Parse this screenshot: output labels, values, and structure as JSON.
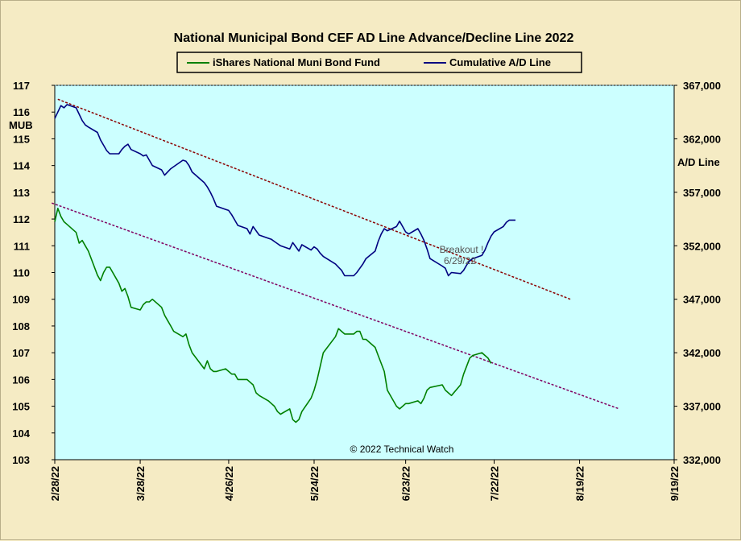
{
  "chart_data": {
    "type": "line",
    "title": "National Municipal Bond CEF AD Line Advance/Decline Line 2022",
    "legend": {
      "placement": "top-center",
      "entries": [
        "iShares National Muni Bond Fund",
        "Cumulative A/D Line"
      ]
    },
    "left_axis": {
      "label": "MUB",
      "range": [
        103,
        117
      ],
      "ticks": [
        "103",
        "104",
        "105",
        "106",
        "107",
        "108",
        "109",
        "110",
        "111",
        "112",
        "113",
        "114",
        "115",
        "116",
        "117"
      ]
    },
    "right_axis": {
      "label": "A/D Line",
      "range": [
        332000,
        367000
      ],
      "ticks": [
        "332,000",
        "337,000",
        "342,000",
        "347,000",
        "352,000",
        "357,000",
        "362,000",
        "367,000"
      ]
    },
    "x_axis": {
      "range": [
        "2022-02-28",
        "2022-09-19"
      ],
      "ticks": [
        "2/28/22",
        "3/28/22",
        "4/26/22",
        "5/24/22",
        "6/23/22",
        "7/22/22",
        "8/19/22",
        "9/19/22"
      ]
    },
    "grid": false,
    "colors": {
      "plot_bg": "#ccffff",
      "mub": "#008000",
      "ad": "#000080",
      "trend_ad": "#8b0000",
      "trend_mub": "#800060",
      "page_bg": "#f5ebc4"
    },
    "series": [
      {
        "name": "iShares National Muni Bond Fund",
        "axis": "left",
        "points": [
          [
            "2022-02-28",
            111.9
          ],
          [
            "2022-03-01",
            112.4
          ],
          [
            "2022-03-02",
            112.1
          ],
          [
            "2022-03-03",
            111.9
          ],
          [
            "2022-03-04",
            111.8
          ],
          [
            "2022-03-07",
            111.5
          ],
          [
            "2022-03-08",
            111.1
          ],
          [
            "2022-03-09",
            111.2
          ],
          [
            "2022-03-10",
            111.0
          ],
          [
            "2022-03-11",
            110.8
          ],
          [
            "2022-03-14",
            109.9
          ],
          [
            "2022-03-15",
            109.7
          ],
          [
            "2022-03-16",
            110.0
          ],
          [
            "2022-03-17",
            110.2
          ],
          [
            "2022-03-18",
            110.2
          ],
          [
            "2022-03-21",
            109.6
          ],
          [
            "2022-03-22",
            109.3
          ],
          [
            "2022-03-23",
            109.4
          ],
          [
            "2022-03-24",
            109.1
          ],
          [
            "2022-03-25",
            108.7
          ],
          [
            "2022-03-28",
            108.6
          ],
          [
            "2022-03-29",
            108.8
          ],
          [
            "2022-03-30",
            108.9
          ],
          [
            "2022-03-31",
            108.9
          ],
          [
            "2022-04-01",
            109.0
          ],
          [
            "2022-04-04",
            108.7
          ],
          [
            "2022-04-05",
            108.4
          ],
          [
            "2022-04-06",
            108.2
          ],
          [
            "2022-04-07",
            108.0
          ],
          [
            "2022-04-08",
            107.8
          ],
          [
            "2022-04-11",
            107.6
          ],
          [
            "2022-04-12",
            107.7
          ],
          [
            "2022-04-13",
            107.3
          ],
          [
            "2022-04-14",
            107.0
          ],
          [
            "2022-04-18",
            106.4
          ],
          [
            "2022-04-19",
            106.7
          ],
          [
            "2022-04-20",
            106.4
          ],
          [
            "2022-04-21",
            106.3
          ],
          [
            "2022-04-22",
            106.3
          ],
          [
            "2022-04-25",
            106.4
          ],
          [
            "2022-04-26",
            106.3
          ],
          [
            "2022-04-27",
            106.2
          ],
          [
            "2022-04-28",
            106.2
          ],
          [
            "2022-04-29",
            106.0
          ],
          [
            "2022-05-02",
            106.0
          ],
          [
            "2022-05-03",
            105.9
          ],
          [
            "2022-05-04",
            105.8
          ],
          [
            "2022-05-05",
            105.5
          ],
          [
            "2022-05-06",
            105.4
          ],
          [
            "2022-05-09",
            105.2
          ],
          [
            "2022-05-10",
            105.1
          ],
          [
            "2022-05-11",
            105.0
          ],
          [
            "2022-05-12",
            104.8
          ],
          [
            "2022-05-13",
            104.7
          ],
          [
            "2022-05-16",
            104.9
          ],
          [
            "2022-05-17",
            104.5
          ],
          [
            "2022-05-18",
            104.4
          ],
          [
            "2022-05-19",
            104.5
          ],
          [
            "2022-05-20",
            104.8
          ],
          [
            "2022-05-23",
            105.3
          ],
          [
            "2022-05-24",
            105.6
          ],
          [
            "2022-05-25",
            106.0
          ],
          [
            "2022-05-26",
            106.5
          ],
          [
            "2022-05-27",
            107.0
          ],
          [
            "2022-05-31",
            107.6
          ],
          [
            "2022-06-01",
            107.9
          ],
          [
            "2022-06-02",
            107.8
          ],
          [
            "2022-06-03",
            107.7
          ],
          [
            "2022-06-06",
            107.7
          ],
          [
            "2022-06-07",
            107.8
          ],
          [
            "2022-06-08",
            107.8
          ],
          [
            "2022-06-09",
            107.5
          ],
          [
            "2022-06-10",
            107.5
          ],
          [
            "2022-06-13",
            107.2
          ],
          [
            "2022-06-14",
            106.9
          ],
          [
            "2022-06-15",
            106.6
          ],
          [
            "2022-06-16",
            106.3
          ],
          [
            "2022-06-17",
            105.6
          ],
          [
            "2022-06-20",
            105.0
          ],
          [
            "2022-06-21",
            104.9
          ],
          [
            "2022-06-22",
            105.0
          ],
          [
            "2022-06-23",
            105.1
          ],
          [
            "2022-06-24",
            105.1
          ],
          [
            "2022-06-27",
            105.2
          ],
          [
            "2022-06-28",
            105.1
          ],
          [
            "2022-06-29",
            105.3
          ],
          [
            "2022-06-30",
            105.6
          ],
          [
            "2022-07-01",
            105.7
          ],
          [
            "2022-07-05",
            105.8
          ],
          [
            "2022-07-06",
            105.6
          ],
          [
            "2022-07-07",
            105.5
          ],
          [
            "2022-07-08",
            105.4
          ],
          [
            "2022-07-11",
            105.8
          ],
          [
            "2022-07-12",
            106.2
          ],
          [
            "2022-07-13",
            106.5
          ],
          [
            "2022-07-14",
            106.8
          ],
          [
            "2022-07-15",
            106.9
          ],
          [
            "2022-07-18",
            107.0
          ],
          [
            "2022-07-19",
            106.9
          ],
          [
            "2022-07-20",
            106.8
          ],
          [
            "2022-07-21",
            106.6
          ]
        ]
      },
      {
        "name": "Cumulative A/D Line",
        "axis": "right",
        "points": [
          [
            "2022-02-28",
            363900
          ],
          [
            "2022-03-01",
            364500
          ],
          [
            "2022-03-02",
            365100
          ],
          [
            "2022-03-03",
            364900
          ],
          [
            "2022-03-04",
            365200
          ],
          [
            "2022-03-07",
            364900
          ],
          [
            "2022-03-08",
            364300
          ],
          [
            "2022-03-09",
            363700
          ],
          [
            "2022-03-10",
            363300
          ],
          [
            "2022-03-11",
            363100
          ],
          [
            "2022-03-14",
            362600
          ],
          [
            "2022-03-15",
            361900
          ],
          [
            "2022-03-16",
            361400
          ],
          [
            "2022-03-17",
            360900
          ],
          [
            "2022-03-18",
            360600
          ],
          [
            "2022-03-21",
            360600
          ],
          [
            "2022-03-22",
            361000
          ],
          [
            "2022-03-23",
            361300
          ],
          [
            "2022-03-24",
            361500
          ],
          [
            "2022-03-25",
            361000
          ],
          [
            "2022-03-28",
            360600
          ],
          [
            "2022-03-29",
            360400
          ],
          [
            "2022-03-30",
            360500
          ],
          [
            "2022-03-31",
            360000
          ],
          [
            "2022-04-01",
            359500
          ],
          [
            "2022-04-04",
            359100
          ],
          [
            "2022-04-05",
            358600
          ],
          [
            "2022-04-06",
            358900
          ],
          [
            "2022-04-07",
            359200
          ],
          [
            "2022-04-08",
            359400
          ],
          [
            "2022-04-11",
            360000
          ],
          [
            "2022-04-12",
            359900
          ],
          [
            "2022-04-13",
            359500
          ],
          [
            "2022-04-14",
            358900
          ],
          [
            "2022-04-18",
            357900
          ],
          [
            "2022-04-19",
            357500
          ],
          [
            "2022-04-20",
            357000
          ],
          [
            "2022-04-21",
            356400
          ],
          [
            "2022-04-22",
            355700
          ],
          [
            "2022-04-25",
            355400
          ],
          [
            "2022-04-26",
            355300
          ],
          [
            "2022-04-27",
            354900
          ],
          [
            "2022-04-28",
            354400
          ],
          [
            "2022-04-29",
            353900
          ],
          [
            "2022-05-02",
            353600
          ],
          [
            "2022-05-03",
            353100
          ],
          [
            "2022-05-04",
            353800
          ],
          [
            "2022-05-05",
            353400
          ],
          [
            "2022-05-06",
            353000
          ],
          [
            "2022-05-09",
            352700
          ],
          [
            "2022-05-10",
            352600
          ],
          [
            "2022-05-11",
            352400
          ],
          [
            "2022-05-12",
            352200
          ],
          [
            "2022-05-13",
            352000
          ],
          [
            "2022-05-16",
            351700
          ],
          [
            "2022-05-17",
            352300
          ],
          [
            "2022-05-18",
            351900
          ],
          [
            "2022-05-19",
            351500
          ],
          [
            "2022-05-20",
            352100
          ],
          [
            "2022-05-23",
            351600
          ],
          [
            "2022-05-24",
            351900
          ],
          [
            "2022-05-25",
            351700
          ],
          [
            "2022-05-26",
            351300
          ],
          [
            "2022-05-27",
            351000
          ],
          [
            "2022-05-31",
            350300
          ],
          [
            "2022-06-01",
            350000
          ],
          [
            "2022-06-02",
            349700
          ],
          [
            "2022-06-03",
            349200
          ],
          [
            "2022-06-06",
            349200
          ],
          [
            "2022-06-07",
            349500
          ],
          [
            "2022-06-08",
            349900
          ],
          [
            "2022-06-09",
            350300
          ],
          [
            "2022-06-10",
            350800
          ],
          [
            "2022-06-13",
            351500
          ],
          [
            "2022-06-14",
            352400
          ],
          [
            "2022-06-15",
            353100
          ],
          [
            "2022-06-16",
            353600
          ],
          [
            "2022-06-17",
            353400
          ],
          [
            "2022-06-20",
            353800
          ],
          [
            "2022-06-21",
            354300
          ],
          [
            "2022-06-22",
            353800
          ],
          [
            "2022-06-23",
            353300
          ],
          [
            "2022-06-24",
            353100
          ],
          [
            "2022-06-27",
            353600
          ],
          [
            "2022-06-28",
            353100
          ],
          [
            "2022-06-29",
            352500
          ],
          [
            "2022-06-30",
            351700
          ],
          [
            "2022-07-01",
            350800
          ],
          [
            "2022-07-05",
            350100
          ],
          [
            "2022-07-06",
            349900
          ],
          [
            "2022-07-07",
            349200
          ],
          [
            "2022-07-08",
            349500
          ],
          [
            "2022-07-11",
            349400
          ],
          [
            "2022-07-12",
            349700
          ],
          [
            "2022-07-13",
            350200
          ],
          [
            "2022-07-14",
            350600
          ],
          [
            "2022-07-15",
            350800
          ],
          [
            "2022-07-18",
            351100
          ],
          [
            "2022-07-19",
            351600
          ],
          [
            "2022-07-20",
            352300
          ],
          [
            "2022-07-21",
            352900
          ],
          [
            "2022-07-22",
            353300
          ],
          [
            "2022-07-25",
            353800
          ],
          [
            "2022-07-26",
            354200
          ],
          [
            "2022-07-27",
            354400
          ],
          [
            "2022-07-28",
            354400
          ],
          [
            "2022-07-29",
            354400
          ]
        ]
      }
    ],
    "trendlines": [
      {
        "axis": "right",
        "from": [
          "2022-03-01",
          365700
        ],
        "to": [
          "2022-08-16",
          347000
        ]
      },
      {
        "axis": "left",
        "from": [
          "2022-02-27",
          112.6
        ],
        "to": [
          "2022-09-01",
          104.9
        ]
      }
    ],
    "annotations": [
      "Breakout !",
      "6/29/22",
      "© 2022 Technical Watch"
    ]
  }
}
